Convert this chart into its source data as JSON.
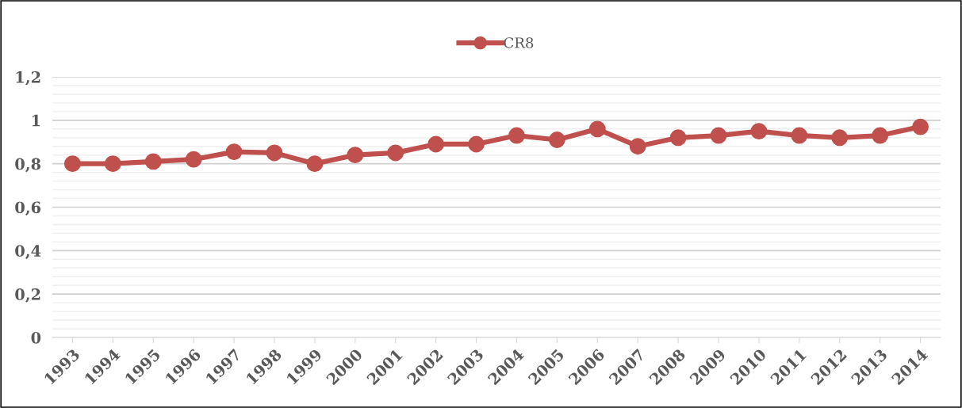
{
  "chart_data": {
    "type": "line",
    "categories": [
      "1993",
      "1994",
      "1995",
      "1996",
      "1997",
      "1998",
      "1999",
      "2000",
      "2001",
      "2002",
      "2003",
      "2004",
      "2005",
      "2006",
      "2007",
      "2008",
      "2009",
      "2010",
      "2011",
      "2012",
      "2013",
      "2014"
    ],
    "series": [
      {
        "name": "CR8",
        "color": "#c0504d",
        "values": [
          0.8,
          0.8,
          0.81,
          0.82,
          0.855,
          0.85,
          0.8,
          0.84,
          0.85,
          0.89,
          0.89,
          0.93,
          0.91,
          0.96,
          0.88,
          0.92,
          0.93,
          0.95,
          0.93,
          0.92,
          0.93,
          0.97
        ]
      }
    ],
    "ylim": [
      0,
      1.2
    ],
    "yticks": [
      {
        "value": 0,
        "label": "0"
      },
      {
        "value": 0.04,
        "label": null
      },
      {
        "value": 0.08,
        "label": null
      },
      {
        "value": 0.12,
        "label": null
      },
      {
        "value": 0.16,
        "label": null
      },
      {
        "value": 0.2,
        "label": "0,2"
      },
      {
        "value": 0.24,
        "label": null
      },
      {
        "value": 0.28,
        "label": null
      },
      {
        "value": 0.32,
        "label": null
      },
      {
        "value": 0.36,
        "label": null
      },
      {
        "value": 0.4,
        "label": "0,4"
      },
      {
        "value": 0.44,
        "label": null
      },
      {
        "value": 0.48,
        "label": null
      },
      {
        "value": 0.52,
        "label": null
      },
      {
        "value": 0.56,
        "label": null
      },
      {
        "value": 0.6,
        "label": "0,6"
      },
      {
        "value": 0.64,
        "label": null
      },
      {
        "value": 0.68,
        "label": null
      },
      {
        "value": 0.72,
        "label": null
      },
      {
        "value": 0.76,
        "label": null
      },
      {
        "value": 0.8,
        "label": "0,8"
      },
      {
        "value": 0.84,
        "label": null
      },
      {
        "value": 0.88,
        "label": null
      },
      {
        "value": 0.92,
        "label": null
      },
      {
        "value": 0.96,
        "label": null
      },
      {
        "value": 1,
        "label": "1"
      },
      {
        "value": 1.04,
        "label": null
      },
      {
        "value": 1.08,
        "label": null
      },
      {
        "value": 1.12,
        "label": null
      },
      {
        "value": 1.16,
        "label": null
      },
      {
        "value": 1.2,
        "label": "1,2"
      }
    ],
    "grid": "y",
    "legend": "top",
    "marker": "circle",
    "line_style": "solid"
  }
}
